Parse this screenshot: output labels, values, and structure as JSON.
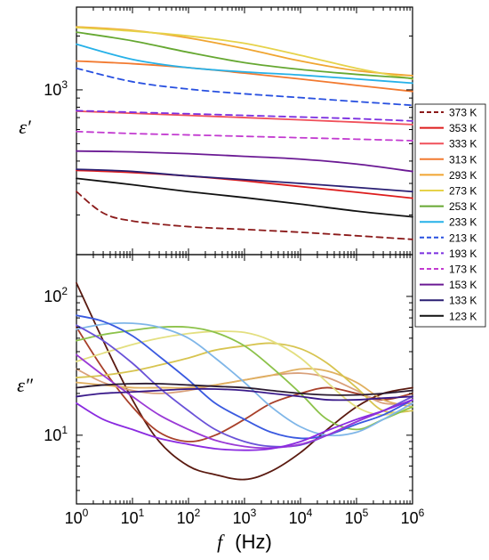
{
  "chart_data": [
    {
      "type": "line",
      "panel": "top",
      "ylabel": "ε′",
      "yscale": "log",
      "ylim": [
        120,
        2900
      ],
      "xlim": [
        1,
        1000000
      ],
      "xscale": "log",
      "y_ticks": [
        {
          "value": 1000,
          "label": "10",
          "sup": "3"
        }
      ],
      "series": [
        {
          "name": "373 K",
          "color": "#8b1a1a",
          "dash": true,
          "x": [
            1,
            3,
            10,
            100,
            1000,
            10000,
            100000,
            1000000
          ],
          "y": [
            270,
            205,
            185,
            172,
            166,
            160,
            153,
            146
          ]
        },
        {
          "name": "353 K",
          "color": "#dd1c1c",
          "dash": false,
          "x": [
            1,
            10,
            100,
            1000,
            10000,
            100000,
            1000000
          ],
          "y": [
            355,
            345,
            330,
            310,
            288,
            268,
            248
          ]
        },
        {
          "name": "333 K",
          "color": "#f0505a",
          "dash": false,
          "x": [
            1,
            10,
            100,
            1000,
            10000,
            100000,
            1000000
          ],
          "y": [
            760,
            740,
            720,
            700,
            680,
            660,
            640
          ]
        },
        {
          "name": "313 K",
          "color": "#f27a30",
          "dash": false,
          "x": [
            1,
            10,
            100,
            1000,
            10000,
            100000,
            1000000
          ],
          "y": [
            1450,
            1400,
            1330,
            1240,
            1150,
            1060,
            980
          ]
        },
        {
          "name": "293 K",
          "color": "#f0a531",
          "dash": false,
          "x": [
            1,
            10,
            100,
            1000,
            10000,
            100000,
            1000000
          ],
          "y": [
            2250,
            2150,
            1950,
            1700,
            1450,
            1280,
            1200
          ]
        },
        {
          "name": "273 K",
          "color": "#e6d24a",
          "dash": false,
          "x": [
            1,
            10,
            100,
            1000,
            10000,
            100000,
            1000000
          ],
          "y": [
            2230,
            2130,
            2000,
            1820,
            1560,
            1320,
            1150
          ]
        },
        {
          "name": "253 K",
          "color": "#66a832",
          "dash": false,
          "x": [
            1,
            10,
            100,
            1000,
            10000,
            100000,
            1000000
          ],
          "y": [
            2100,
            1880,
            1620,
            1420,
            1300,
            1220,
            1160
          ]
        },
        {
          "name": "233 K",
          "color": "#26b1e8",
          "dash": false,
          "x": [
            1,
            10,
            100,
            1000,
            10000,
            100000,
            1000000
          ],
          "y": [
            1800,
            1480,
            1330,
            1260,
            1210,
            1150,
            1090
          ]
        },
        {
          "name": "213 K",
          "color": "#2850e0",
          "dash": true,
          "x": [
            1,
            10,
            100,
            1000,
            10000,
            100000,
            1000000
          ],
          "y": [
            1320,
            1110,
            1010,
            950,
            905,
            860,
            820
          ]
        },
        {
          "name": "193 K",
          "color": "#7b2ee0",
          "dash": true,
          "x": [
            1,
            10,
            100,
            1000,
            10000,
            100000,
            1000000
          ],
          "y": [
            765,
            750,
            735,
            720,
            705,
            690,
            670
          ]
        },
        {
          "name": "173 K",
          "color": "#c23ad0",
          "dash": true,
          "x": [
            1,
            10,
            100,
            1000,
            10000,
            100000,
            1000000
          ],
          "y": [
            585,
            570,
            560,
            550,
            540,
            530,
            520
          ]
        },
        {
          "name": "153 K",
          "color": "#6b1a94",
          "dash": false,
          "x": [
            1,
            10,
            100,
            1000,
            10000,
            100000,
            1000000
          ],
          "y": [
            455,
            450,
            440,
            425,
            410,
            385,
            350
          ]
        },
        {
          "name": "133 K",
          "color": "#2a1f73",
          "dash": false,
          "x": [
            1,
            10,
            100,
            1000,
            10000,
            100000,
            1000000
          ],
          "y": [
            360,
            350,
            330,
            315,
            300,
            285,
            270
          ]
        },
        {
          "name": "123 K",
          "color": "#111111",
          "dash": false,
          "x": [
            1,
            10,
            100,
            1000,
            10000,
            100000,
            1000000
          ],
          "y": [
            320,
            295,
            270,
            250,
            230,
            210,
            195
          ]
        }
      ]
    },
    {
      "type": "line",
      "panel": "bottom",
      "ylabel": "ε″",
      "yscale": "log",
      "ylim": [
        3.2,
        200
      ],
      "xlim": [
        1,
        1000000
      ],
      "xscale": "log",
      "xlabel_var": "f",
      "xlabel_unit": "(Hz)",
      "x_ticks": [
        {
          "value": 1,
          "label": "10",
          "sup": "0"
        },
        {
          "value": 10,
          "label": "10",
          "sup": "1"
        },
        {
          "value": 100,
          "label": "10",
          "sup": "2"
        },
        {
          "value": 1000,
          "label": "10",
          "sup": "3"
        },
        {
          "value": 10000,
          "label": "10",
          "sup": "4"
        },
        {
          "value": 100000,
          "label": "10",
          "sup": "5"
        },
        {
          "value": 1000000,
          "label": "10",
          "sup": "6"
        }
      ],
      "y_ticks": [
        {
          "value": 10,
          "label": "10",
          "sup": "1"
        },
        {
          "value": 100,
          "label": "10",
          "sup": "2"
        }
      ],
      "series": [
        {
          "name": "373 K",
          "color": "#5a1a10",
          "x": [
            1,
            3,
            10,
            30,
            100,
            300,
            1000,
            3000,
            10000,
            30000,
            100000,
            300000,
            1000000
          ],
          "y": [
            125,
            48,
            18,
            9,
            6,
            5.2,
            4.8,
            5.5,
            7.5,
            11,
            16,
            20,
            22
          ]
        },
        {
          "name": "353 K",
          "color": "#a8402a",
          "x": [
            1,
            3,
            10,
            30,
            100,
            300,
            1000,
            3000,
            10000,
            30000,
            100000,
            300000,
            1000000
          ],
          "y": [
            60,
            30,
            16,
            10.5,
            9,
            10,
            13,
            17,
            20,
            22,
            20,
            18,
            20
          ]
        },
        {
          "name": "333 K",
          "color": "#d9a07a",
          "x": [
            1,
            3,
            10,
            30,
            100,
            300,
            1000,
            3000,
            10000,
            30000,
            100000,
            300000,
            1000000
          ],
          "y": [
            30,
            24,
            21,
            20,
            21,
            23,
            25,
            27,
            28,
            26,
            21,
            17,
            17
          ]
        },
        {
          "name": "313 K",
          "color": "#e0b060",
          "x": [
            1,
            3,
            10,
            30,
            100,
            300,
            1000,
            3000,
            10000,
            30000,
            100000,
            300000,
            1000000
          ],
          "y": [
            24,
            23,
            22,
            22,
            22,
            23,
            25,
            27,
            30,
            29,
            24,
            18,
            16
          ]
        },
        {
          "name": "293 K",
          "color": "#d7c450",
          "x": [
            1,
            3,
            10,
            30,
            100,
            300,
            1000,
            3000,
            10000,
            30000,
            100000,
            300000,
            1000000
          ],
          "y": [
            26,
            27,
            29,
            32,
            36,
            41,
            44,
            46,
            42,
            33,
            22,
            15,
            15
          ]
        },
        {
          "name": "273 K",
          "color": "#e3df80",
          "x": [
            1,
            3,
            10,
            30,
            100,
            300,
            1000,
            3000,
            10000,
            30000,
            100000,
            300000,
            1000000
          ],
          "y": [
            34,
            39,
            45,
            50,
            54,
            56,
            55,
            48,
            36,
            24,
            16,
            14,
            16
          ]
        },
        {
          "name": "253 K",
          "color": "#8cc24a",
          "x": [
            1,
            3,
            10,
            30,
            100,
            300,
            1000,
            3000,
            10000,
            30000,
            100000,
            300000,
            1000000
          ],
          "y": [
            48,
            53,
            57,
            60,
            60,
            55,
            44,
            31,
            20,
            13,
            11,
            13,
            16
          ]
        },
        {
          "name": "233 K",
          "color": "#7fb6e8",
          "x": [
            1,
            3,
            10,
            30,
            100,
            300,
            1000,
            3000,
            10000,
            30000,
            100000,
            300000,
            1000000
          ],
          "y": [
            58,
            63,
            64,
            60,
            50,
            36,
            24,
            16,
            11.5,
            10,
            10.5,
            13,
            17
          ]
        },
        {
          "name": "213 K",
          "color": "#3a5ae0",
          "x": [
            1,
            3,
            10,
            30,
            100,
            300,
            1000,
            3000,
            10000,
            30000,
            100000,
            300000,
            1000000
          ],
          "y": [
            73,
            66,
            52,
            37,
            25,
            17,
            13,
            10.5,
            9.5,
            10,
            12,
            14,
            18
          ]
        },
        {
          "name": "193 K",
          "color": "#6a52d8",
          "x": [
            1,
            3,
            10,
            30,
            100,
            300,
            1000,
            3000,
            10000,
            30000,
            100000,
            300000,
            1000000
          ],
          "y": [
            62,
            48,
            33,
            22,
            15,
            11,
            9,
            8.3,
            8.5,
            10,
            12.5,
            15,
            19
          ]
        },
        {
          "name": "173 K",
          "color": "#9a3ad6",
          "x": [
            1,
            3,
            10,
            30,
            100,
            300,
            1000,
            3000,
            10000,
            30000,
            100000,
            300000,
            1000000
          ],
          "y": [
            38,
            27,
            19,
            14,
            11,
            9.2,
            8.3,
            8.1,
            8.6,
            10,
            12.5,
            15,
            18
          ]
        },
        {
          "name": "153 K",
          "color": "#8a2ae0",
          "x": [
            1,
            3,
            10,
            30,
            100,
            300,
            1000,
            3000,
            10000,
            30000,
            100000,
            300000,
            1000000
          ],
          "y": [
            17,
            13,
            11,
            9.5,
            8.6,
            8,
            7.8,
            8,
            9,
            10.8,
            13,
            15,
            18
          ]
        },
        {
          "name": "133 K",
          "color": "#3a1a8a",
          "x": [
            1,
            3,
            10,
            30,
            100,
            300,
            1000,
            3000,
            10000,
            30000,
            100000,
            300000,
            1000000
          ],
          "y": [
            19,
            20,
            20.5,
            21,
            21.5,
            21.5,
            21,
            20,
            19,
            18,
            18,
            18.5,
            19
          ]
        },
        {
          "name": "123 K",
          "color": "#2a1a30",
          "x": [
            1,
            3,
            10,
            30,
            100,
            300,
            1000,
            3000,
            10000,
            30000,
            100000,
            300000,
            1000000
          ],
          "y": [
            22,
            23,
            23.5,
            23.5,
            23,
            22.5,
            22,
            21,
            20,
            19.5,
            19.5,
            20,
            21
          ]
        }
      ]
    }
  ],
  "legend": {
    "entries": [
      {
        "label": "373 K",
        "color": "#8b1a1a",
        "dash": true
      },
      {
        "label": "353 K",
        "color": "#dd1c1c",
        "dash": false
      },
      {
        "label": "333 K",
        "color": "#f0505a",
        "dash": false
      },
      {
        "label": "313 K",
        "color": "#f27a30",
        "dash": false
      },
      {
        "label": "293 K",
        "color": "#f0a531",
        "dash": false
      },
      {
        "label": "273 K",
        "color": "#e6d24a",
        "dash": false
      },
      {
        "label": "253 K",
        "color": "#66a832",
        "dash": false
      },
      {
        "label": "233 K",
        "color": "#26b1e8",
        "dash": false
      },
      {
        "label": "213 K",
        "color": "#2850e0",
        "dash": true
      },
      {
        "label": "193 K",
        "color": "#7b2ee0",
        "dash": true
      },
      {
        "label": "173 K",
        "color": "#c23ad0",
        "dash": true
      },
      {
        "label": "153 K",
        "color": "#6b1a94",
        "dash": false
      },
      {
        "label": "133 K",
        "color": "#2a1f73",
        "dash": false
      },
      {
        "label": "123 K",
        "color": "#111111",
        "dash": false
      }
    ]
  }
}
